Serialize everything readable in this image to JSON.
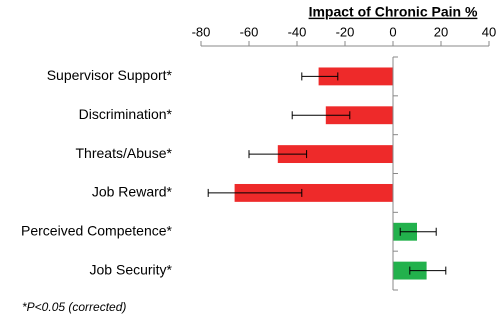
{
  "chart_data": {
    "type": "hbar",
    "title": "Impact of Chronic Pain %",
    "categories": [
      "Supervisor Support*",
      "Discrimination*",
      "Threats/Abuse*",
      "Job Reward*",
      "Perceived Competence*",
      "Job Security*"
    ],
    "values": [
      -31,
      -28,
      -48,
      -66,
      10,
      14
    ],
    "errors": [
      [
        7,
        8
      ],
      [
        14,
        10
      ],
      [
        12,
        12
      ],
      [
        11,
        28
      ],
      [
        7,
        8
      ],
      [
        7,
        8
      ]
    ],
    "colors": [
      "#ee2a2a",
      "#ee2a2a",
      "#ee2a2a",
      "#ee2a2a",
      "#22b14c",
      "#22b14c"
    ],
    "xlim": [
      -80,
      40
    ],
    "xticks": [
      -80,
      -60,
      -40,
      -20,
      0,
      20,
      40
    ],
    "footnote": "*P<0.05 (corrected)"
  }
}
